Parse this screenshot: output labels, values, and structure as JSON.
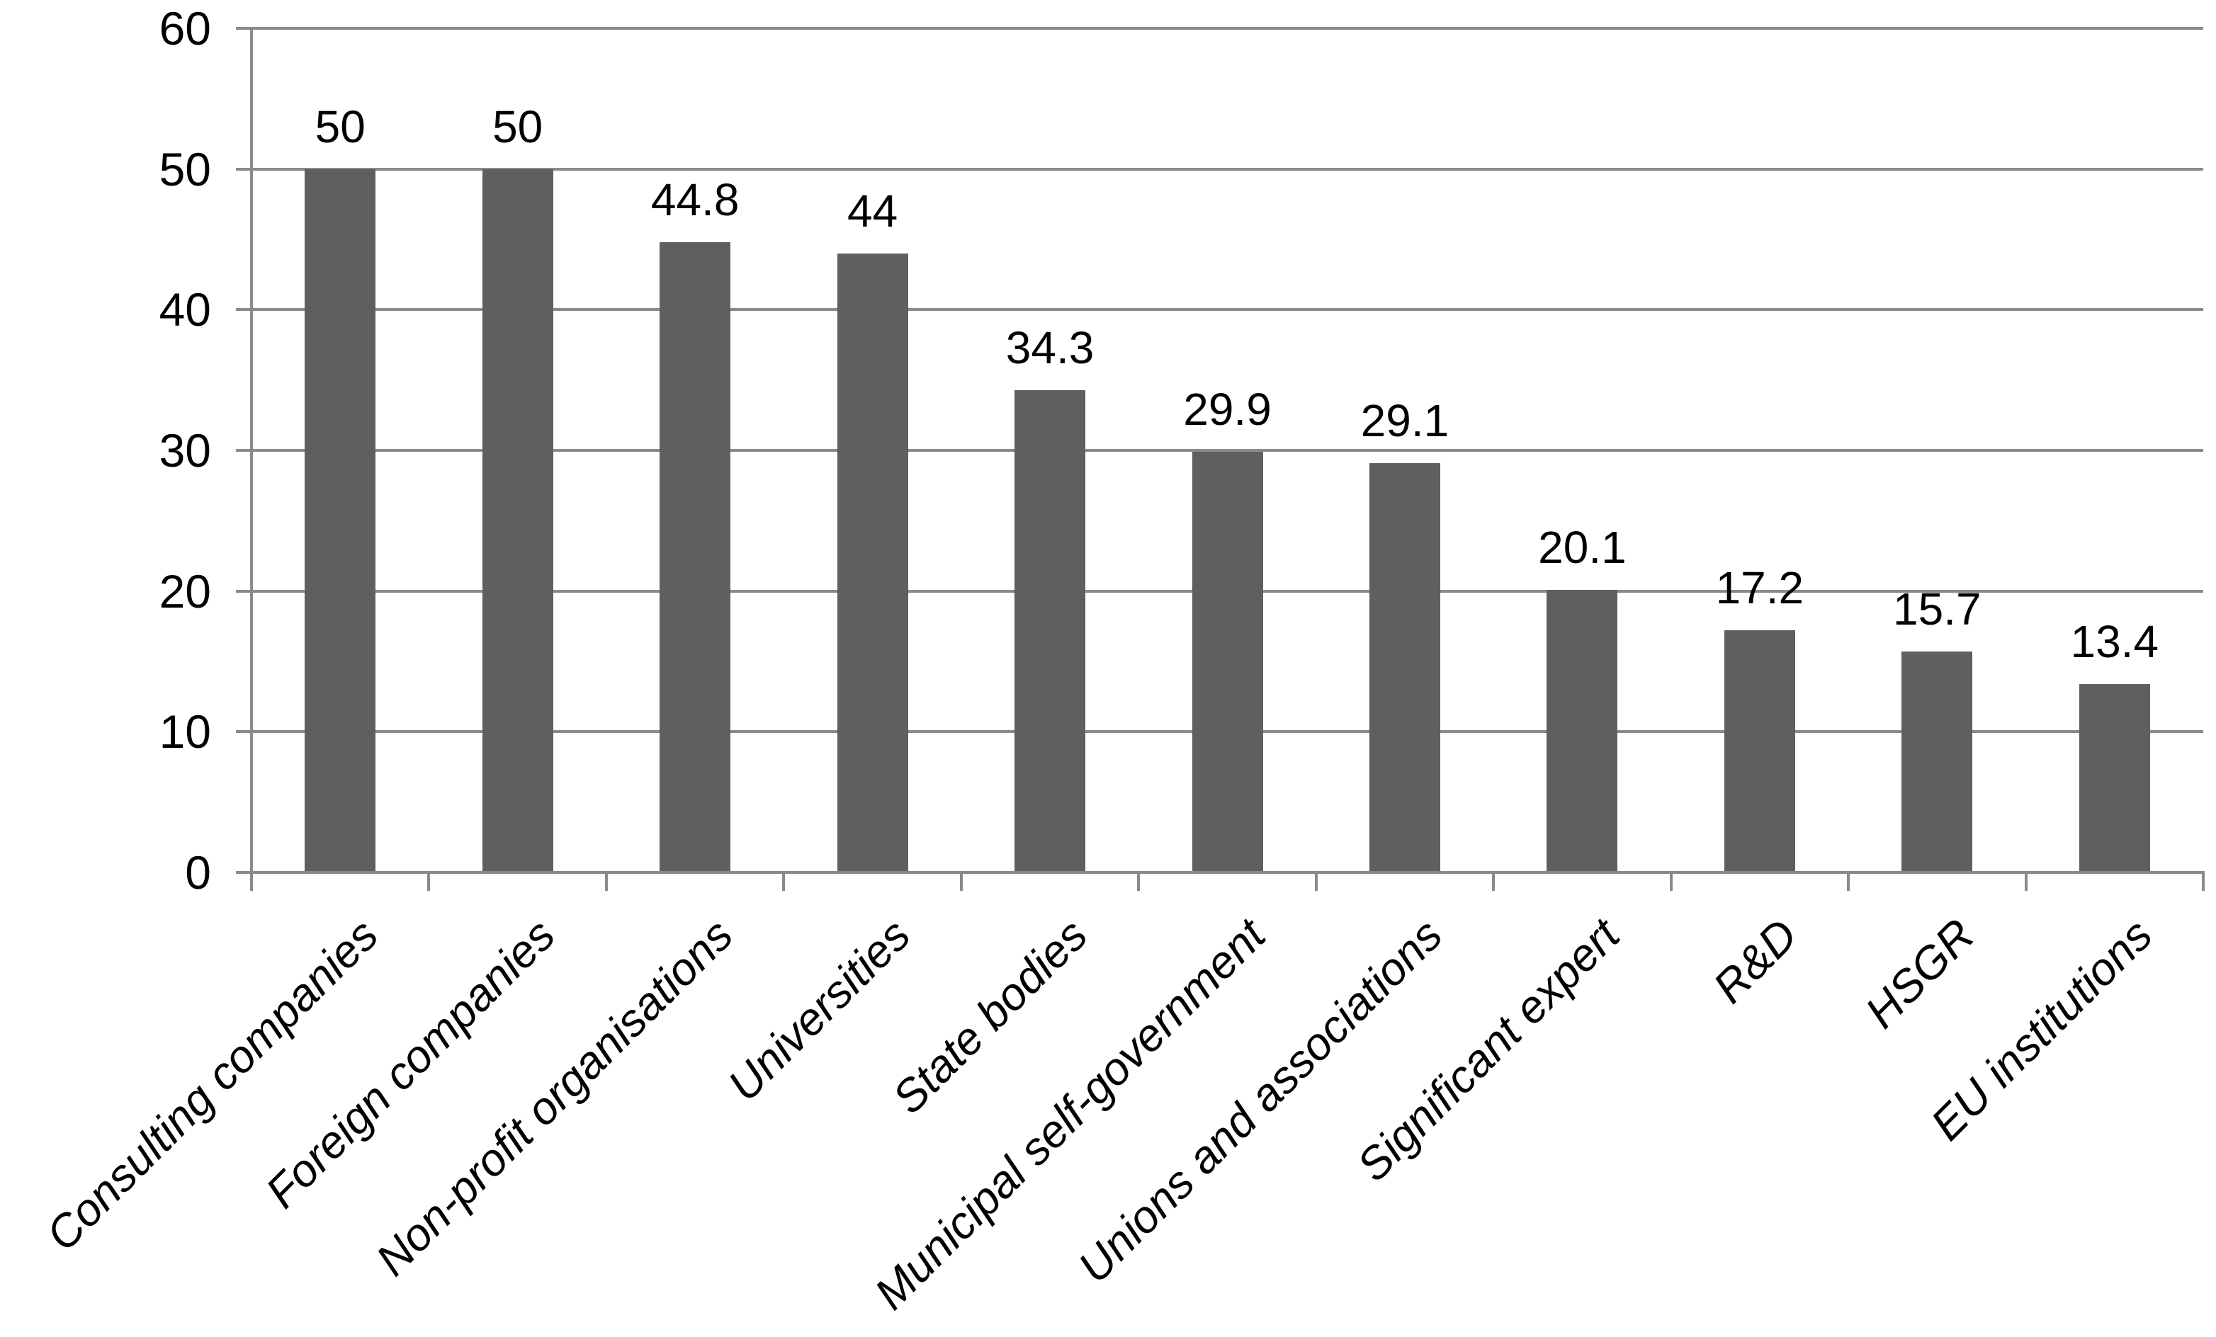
{
  "chart_data": {
    "type": "bar",
    "title": "",
    "xlabel": "",
    "ylabel": "",
    "categories": [
      "Consulting companies",
      "Foreign companies",
      "Non-profit organisations",
      "Universities",
      "State bodies",
      "Municipal self-government",
      "Unions and associations",
      "Significant expert",
      "R&D",
      "HSGR",
      "EU institutions"
    ],
    "values": [
      50,
      50,
      44.8,
      44,
      34.3,
      29.9,
      29.1,
      20.1,
      17.2,
      15.7,
      13.4
    ],
    "value_labels": [
      "50",
      "50",
      "44.8",
      "44",
      "34.3",
      "29.9",
      "29.1",
      "20.1",
      "17.2",
      "15.7",
      "13.4"
    ],
    "ylim": [
      0,
      60
    ],
    "ytick_interval": 10,
    "ytick_labels": [
      "0",
      "10",
      "20",
      "30",
      "40",
      "50",
      "60"
    ],
    "grid": true,
    "legend": false,
    "colors": {
      "bar": "#5f5f5f",
      "gridline": "#8a8a8a",
      "axis": "#8a8a8a",
      "text": "#000000",
      "background": "#ffffff"
    },
    "category_label_rotation_deg": -45,
    "category_label_style": "italic"
  }
}
